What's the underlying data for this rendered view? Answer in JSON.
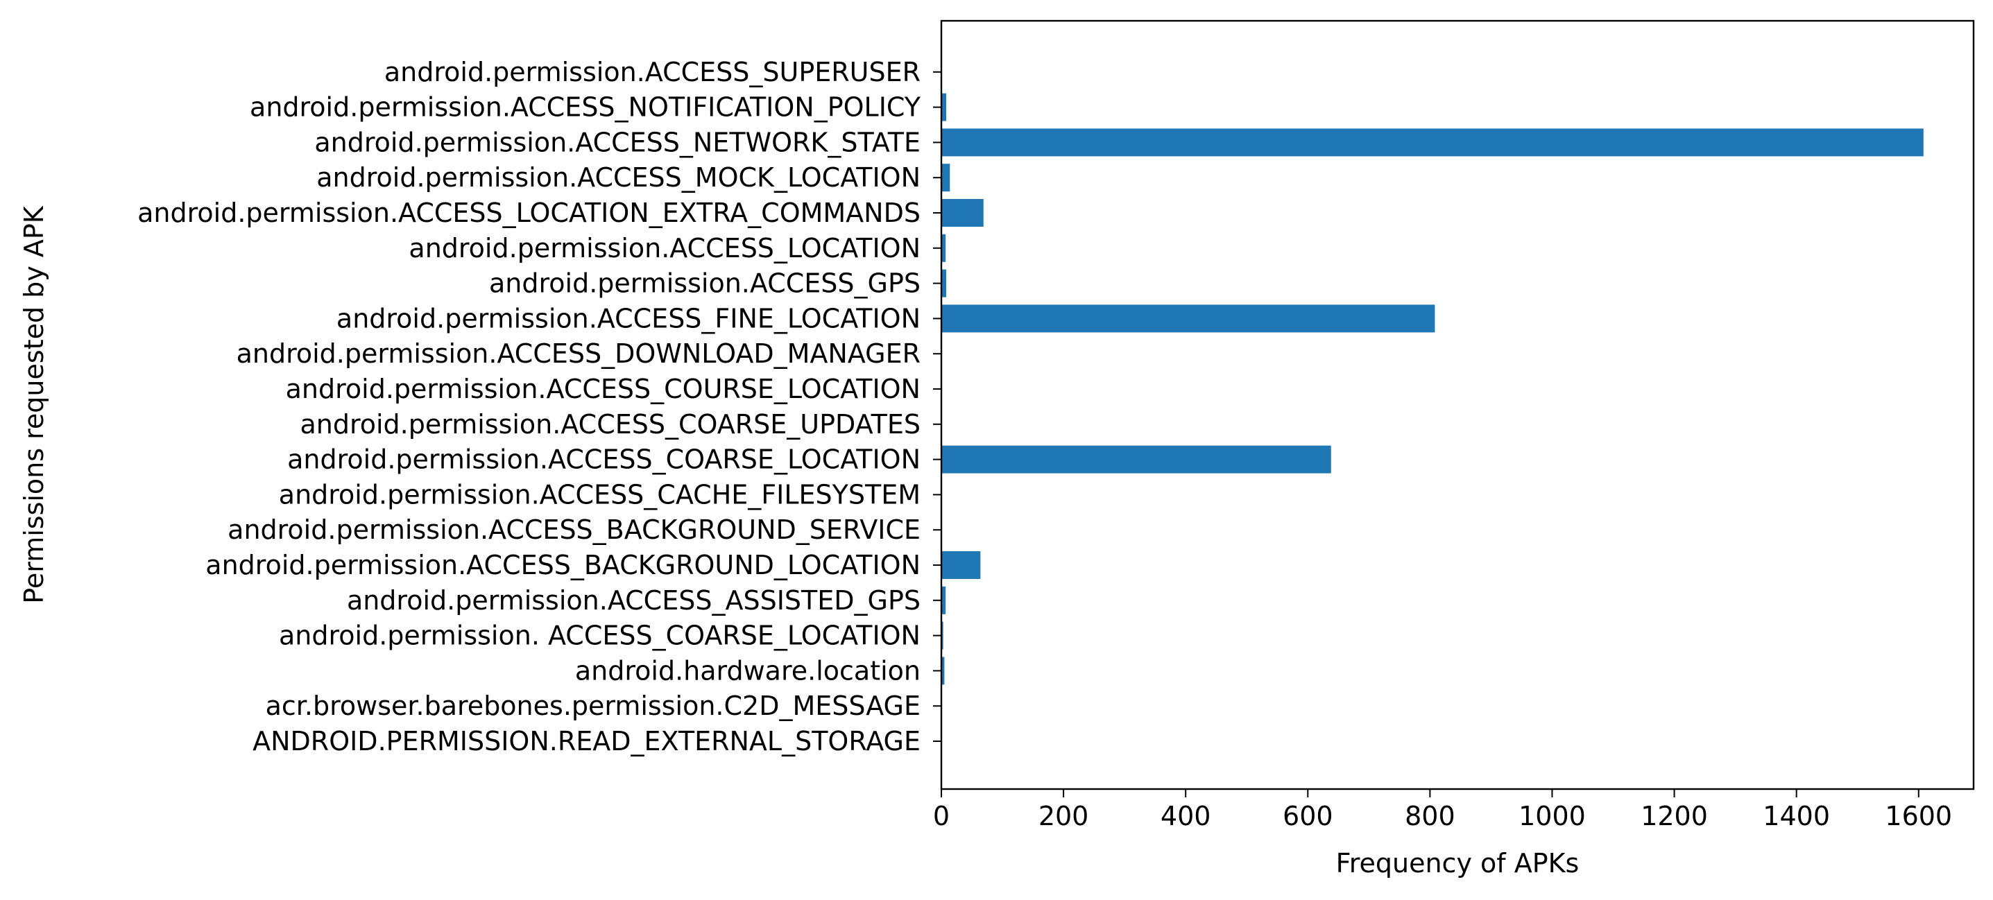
{
  "chart_data": {
    "type": "bar",
    "orientation": "horizontal",
    "title": "",
    "xlabel": "Frequency of APKs",
    "ylabel": "Permissions requested by APK",
    "xlim": [
      0,
      1690
    ],
    "xticks": [
      0,
      200,
      400,
      600,
      800,
      1000,
      1200,
      1400,
      1600
    ],
    "grid": false,
    "bar_color": "#1f77b4",
    "categories": [
      "ANDROID.PERMISSION.READ_EXTERNAL_STORAGE",
      "acr.browser.barebones.permission.C2D_MESSAGE",
      "android.hardware.location",
      "android.permission. ACCESS_COARSE_LOCATION",
      "android.permission.ACCESS_ASSISTED_GPS",
      "android.permission.ACCESS_BACKGROUND_LOCATION",
      "android.permission.ACCESS_BACKGROUND_SERVICE",
      "android.permission.ACCESS_CACHE_FILESYSTEM",
      "android.permission.ACCESS_COARSE_LOCATION",
      "android.permission.ACCESS_COARSE_UPDATES",
      "android.permission.ACCESS_COURSE_LOCATION",
      "android.permission.ACCESS_DOWNLOAD_MANAGER",
      "android.permission.ACCESS_FINE_LOCATION",
      "android.permission.ACCESS_GPS",
      "android.permission.ACCESS_LOCATION",
      "android.permission.ACCESS_LOCATION_EXTRA_COMMANDS",
      "android.permission.ACCESS_MOCK_LOCATION",
      "android.permission.ACCESS_NETWORK_STATE",
      "android.permission.ACCESS_NOTIFICATION_POLICY",
      "android.permission.ACCESS_SUPERUSER"
    ],
    "values": [
      1,
      1,
      5,
      3,
      7,
      64,
      1,
      1,
      638,
      1,
      1,
      1,
      808,
      8,
      7,
      69,
      14,
      1608,
      8,
      1
    ]
  }
}
